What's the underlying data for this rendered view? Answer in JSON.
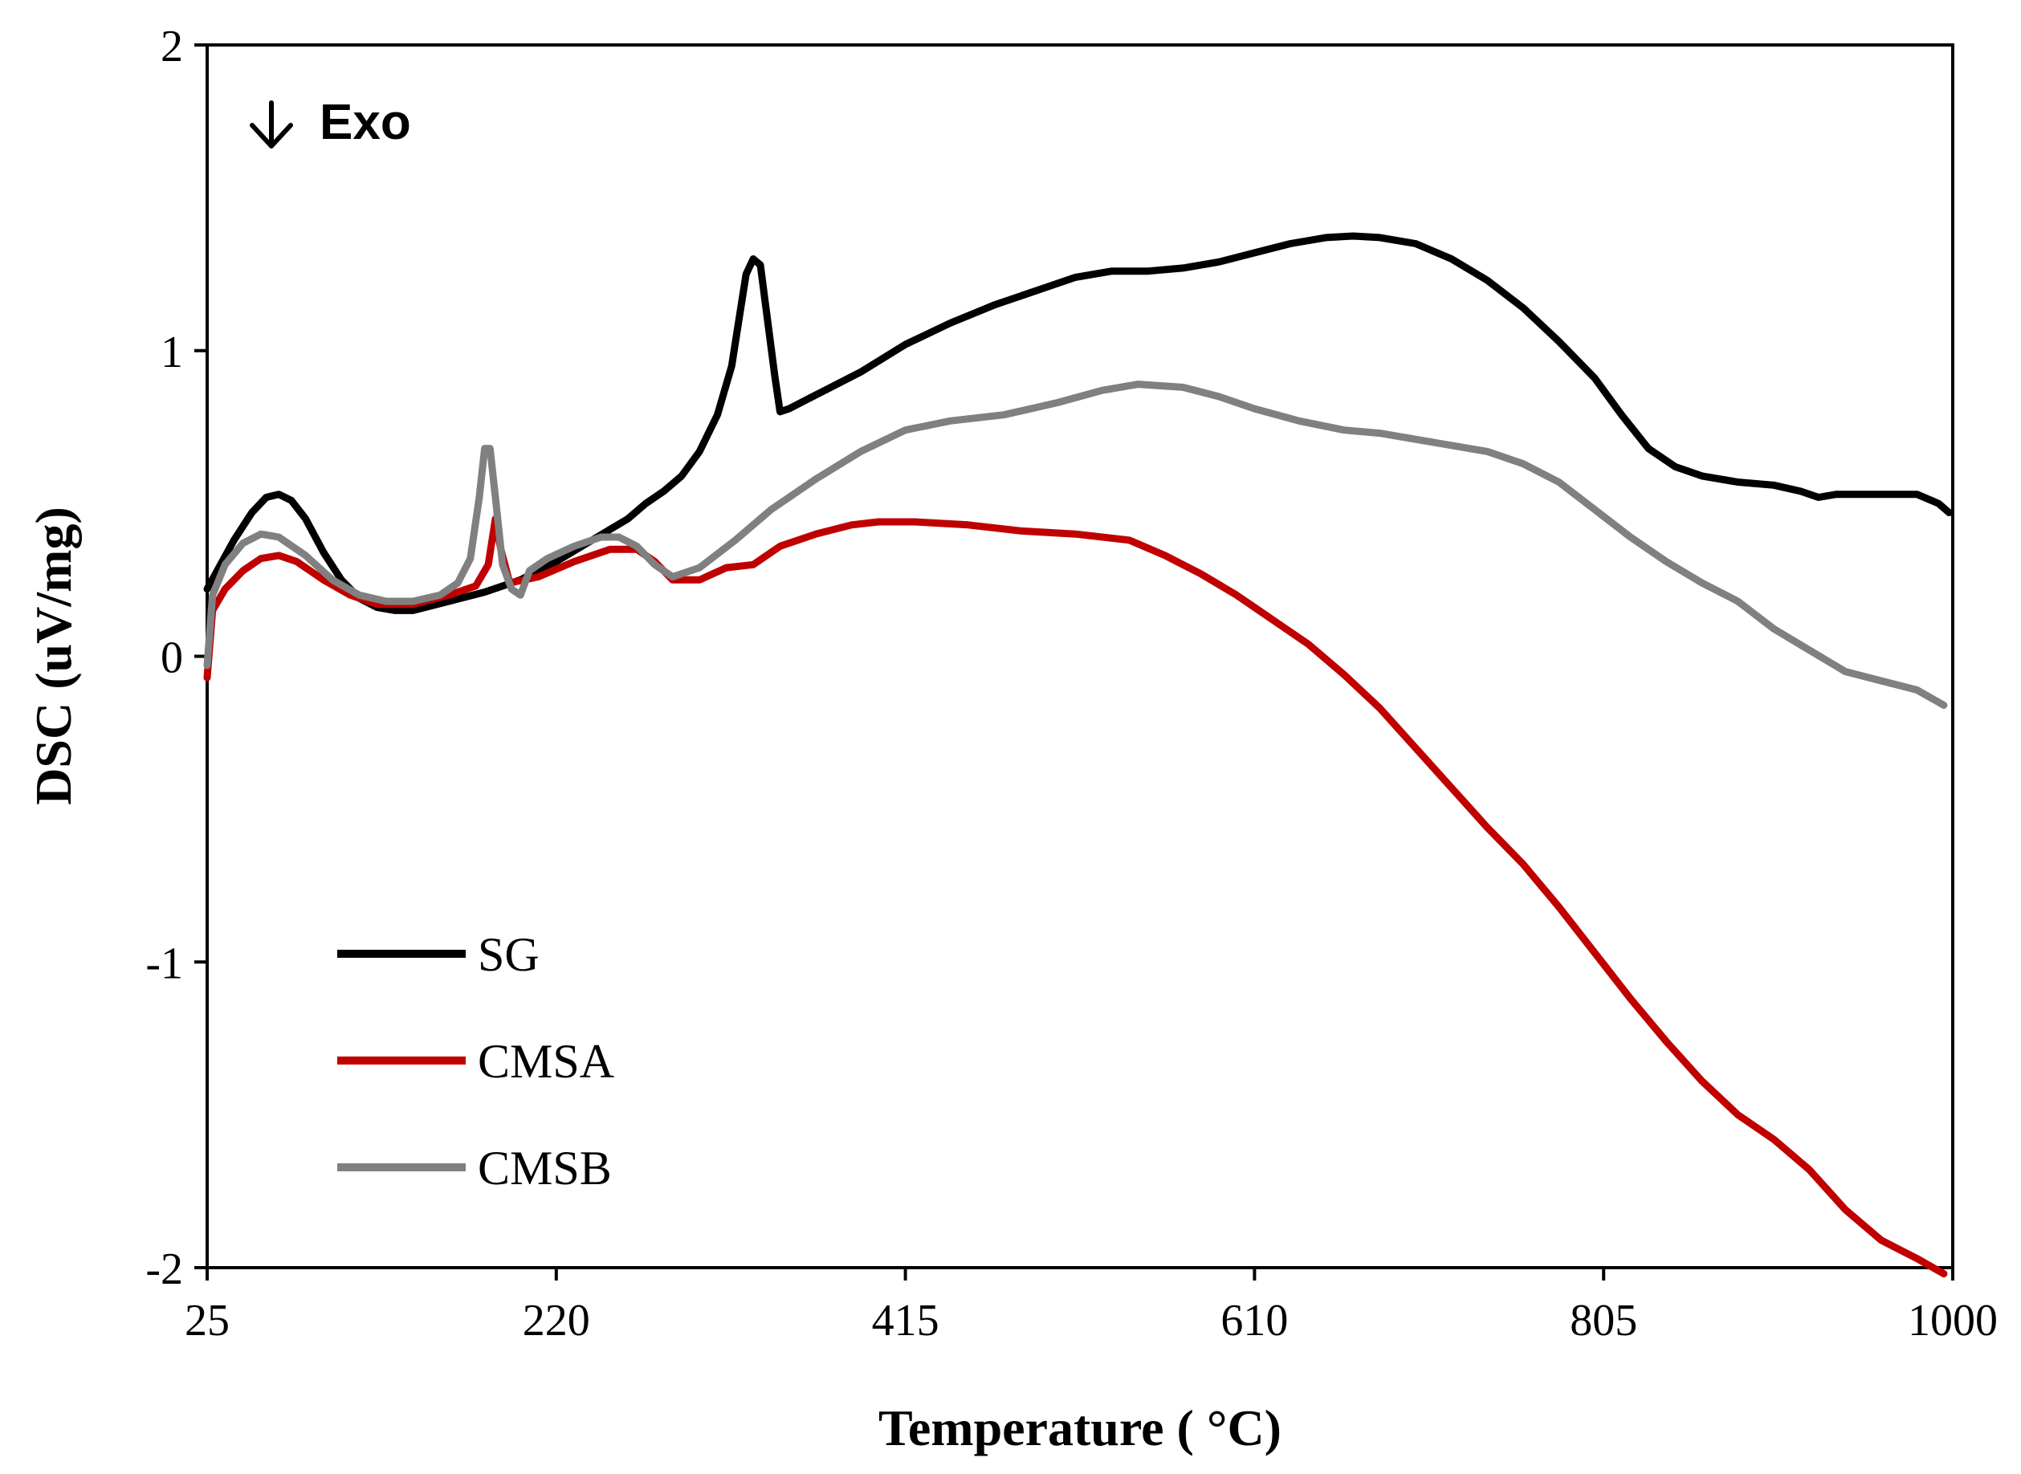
{
  "chart_data": {
    "type": "line",
    "title": "",
    "xlabel": "Temperature ( °C)",
    "ylabel": "DSC (uV/mg)",
    "xlim": [
      25,
      1000
    ],
    "ylim": [
      -2,
      2
    ],
    "xticks": [
      "25",
      "220",
      "415",
      "610",
      "805",
      "1000"
    ],
    "xtick_values": [
      25,
      220,
      415,
      610,
      805,
      1000
    ],
    "yticks": [
      "2",
      "1",
      "0",
      "-1",
      "-2"
    ],
    "ytick_values": [
      2,
      1,
      0,
      -1,
      -2
    ],
    "grid": false,
    "legend_position": "bottom-left",
    "annotation": {
      "arrow": "↓",
      "text": "Exo"
    },
    "series": [
      {
        "name": "SG",
        "color": "#000000",
        "points": [
          [
            25,
            0.22
          ],
          [
            40,
            0.38
          ],
          [
            50,
            0.47
          ],
          [
            58,
            0.52
          ],
          [
            65,
            0.53
          ],
          [
            72,
            0.51
          ],
          [
            80,
            0.45
          ],
          [
            90,
            0.34
          ],
          [
            100,
            0.25
          ],
          [
            110,
            0.19
          ],
          [
            120,
            0.16
          ],
          [
            130,
            0.15
          ],
          [
            140,
            0.15
          ],
          [
            160,
            0.18
          ],
          [
            180,
            0.21
          ],
          [
            200,
            0.25
          ],
          [
            220,
            0.31
          ],
          [
            240,
            0.38
          ],
          [
            260,
            0.45
          ],
          [
            270,
            0.5
          ],
          [
            280,
            0.54
          ],
          [
            290,
            0.59
          ],
          [
            300,
            0.67
          ],
          [
            310,
            0.79
          ],
          [
            318,
            0.95
          ],
          [
            322,
            1.1
          ],
          [
            326,
            1.25
          ],
          [
            330,
            1.3
          ],
          [
            334,
            1.28
          ],
          [
            338,
            1.1
          ],
          [
            342,
            0.92
          ],
          [
            345,
            0.8
          ],
          [
            350,
            0.81
          ],
          [
            370,
            0.87
          ],
          [
            390,
            0.93
          ],
          [
            415,
            1.02
          ],
          [
            440,
            1.09
          ],
          [
            465,
            1.15
          ],
          [
            490,
            1.2
          ],
          [
            510,
            1.24
          ],
          [
            530,
            1.26
          ],
          [
            550,
            1.26
          ],
          [
            570,
            1.27
          ],
          [
            590,
            1.29
          ],
          [
            610,
            1.32
          ],
          [
            630,
            1.35
          ],
          [
            650,
            1.37
          ],
          [
            665,
            1.375
          ],
          [
            680,
            1.37
          ],
          [
            700,
            1.35
          ],
          [
            720,
            1.3
          ],
          [
            740,
            1.23
          ],
          [
            760,
            1.14
          ],
          [
            780,
            1.03
          ],
          [
            800,
            0.91
          ],
          [
            815,
            0.79
          ],
          [
            830,
            0.68
          ],
          [
            845,
            0.62
          ],
          [
            860,
            0.59
          ],
          [
            880,
            0.57
          ],
          [
            900,
            0.56
          ],
          [
            915,
            0.54
          ],
          [
            925,
            0.52
          ],
          [
            935,
            0.53
          ],
          [
            950,
            0.53
          ],
          [
            965,
            0.53
          ],
          [
            980,
            0.53
          ],
          [
            992,
            0.5
          ],
          [
            998,
            0.47
          ]
        ]
      },
      {
        "name": "CMSA",
        "color": "#c00000",
        "points": [
          [
            25,
            -0.07
          ],
          [
            28,
            0.15
          ],
          [
            35,
            0.22
          ],
          [
            45,
            0.28
          ],
          [
            55,
            0.32
          ],
          [
            65,
            0.33
          ],
          [
            75,
            0.31
          ],
          [
            90,
            0.25
          ],
          [
            105,
            0.2
          ],
          [
            120,
            0.17
          ],
          [
            140,
            0.17
          ],
          [
            160,
            0.2
          ],
          [
            175,
            0.23
          ],
          [
            182,
            0.3
          ],
          [
            186,
            0.45
          ],
          [
            189,
            0.35
          ],
          [
            194,
            0.24
          ],
          [
            210,
            0.26
          ],
          [
            230,
            0.31
          ],
          [
            250,
            0.35
          ],
          [
            265,
            0.35
          ],
          [
            275,
            0.31
          ],
          [
            285,
            0.25
          ],
          [
            300,
            0.25
          ],
          [
            315,
            0.29
          ],
          [
            330,
            0.3
          ],
          [
            345,
            0.36
          ],
          [
            365,
            0.4
          ],
          [
            385,
            0.43
          ],
          [
            400,
            0.44
          ],
          [
            420,
            0.44
          ],
          [
            450,
            0.43
          ],
          [
            480,
            0.41
          ],
          [
            510,
            0.4
          ],
          [
            540,
            0.38
          ],
          [
            560,
            0.33
          ],
          [
            580,
            0.27
          ],
          [
            600,
            0.2
          ],
          [
            620,
            0.12
          ],
          [
            640,
            0.04
          ],
          [
            660,
            -0.06
          ],
          [
            680,
            -0.17
          ],
          [
            700,
            -0.3
          ],
          [
            720,
            -0.43
          ],
          [
            740,
            -0.56
          ],
          [
            760,
            -0.68
          ],
          [
            780,
            -0.82
          ],
          [
            800,
            -0.97
          ],
          [
            820,
            -1.12
          ],
          [
            840,
            -1.26
          ],
          [
            860,
            -1.39
          ],
          [
            880,
            -1.5
          ],
          [
            900,
            -1.58
          ],
          [
            920,
            -1.68
          ],
          [
            940,
            -1.81
          ],
          [
            960,
            -1.91
          ],
          [
            980,
            -1.97
          ],
          [
            995,
            -2.02
          ]
        ]
      },
      {
        "name": "CMSB",
        "color": "#808080",
        "points": [
          [
            25,
            -0.03
          ],
          [
            28,
            0.2
          ],
          [
            35,
            0.3
          ],
          [
            45,
            0.37
          ],
          [
            55,
            0.4
          ],
          [
            65,
            0.39
          ],
          [
            80,
            0.33
          ],
          [
            95,
            0.25
          ],
          [
            110,
            0.2
          ],
          [
            125,
            0.18
          ],
          [
            140,
            0.18
          ],
          [
            155,
            0.2
          ],
          [
            165,
            0.24
          ],
          [
            172,
            0.32
          ],
          [
            177,
            0.52
          ],
          [
            180,
            0.68
          ],
          [
            183,
            0.68
          ],
          [
            186,
            0.52
          ],
          [
            190,
            0.3
          ],
          [
            195,
            0.22
          ],
          [
            200,
            0.2
          ],
          [
            205,
            0.28
          ],
          [
            215,
            0.32
          ],
          [
            230,
            0.36
          ],
          [
            245,
            0.39
          ],
          [
            255,
            0.39
          ],
          [
            265,
            0.36
          ],
          [
            275,
            0.3
          ],
          [
            285,
            0.26
          ],
          [
            300,
            0.29
          ],
          [
            320,
            0.38
          ],
          [
            340,
            0.48
          ],
          [
            365,
            0.58
          ],
          [
            390,
            0.67
          ],
          [
            415,
            0.74
          ],
          [
            440,
            0.77
          ],
          [
            470,
            0.79
          ],
          [
            500,
            0.83
          ],
          [
            525,
            0.87
          ],
          [
            545,
            0.89
          ],
          [
            570,
            0.88
          ],
          [
            590,
            0.85
          ],
          [
            610,
            0.81
          ],
          [
            635,
            0.77
          ],
          [
            660,
            0.74
          ],
          [
            680,
            0.73
          ],
          [
            710,
            0.7
          ],
          [
            740,
            0.67
          ],
          [
            760,
            0.63
          ],
          [
            780,
            0.57
          ],
          [
            800,
            0.48
          ],
          [
            820,
            0.39
          ],
          [
            840,
            0.31
          ],
          [
            860,
            0.24
          ],
          [
            880,
            0.18
          ],
          [
            900,
            0.09
          ],
          [
            920,
            0.02
          ],
          [
            940,
            -0.05
          ],
          [
            960,
            -0.08
          ],
          [
            980,
            -0.11
          ],
          [
            995,
            -0.16
          ]
        ]
      }
    ]
  }
}
